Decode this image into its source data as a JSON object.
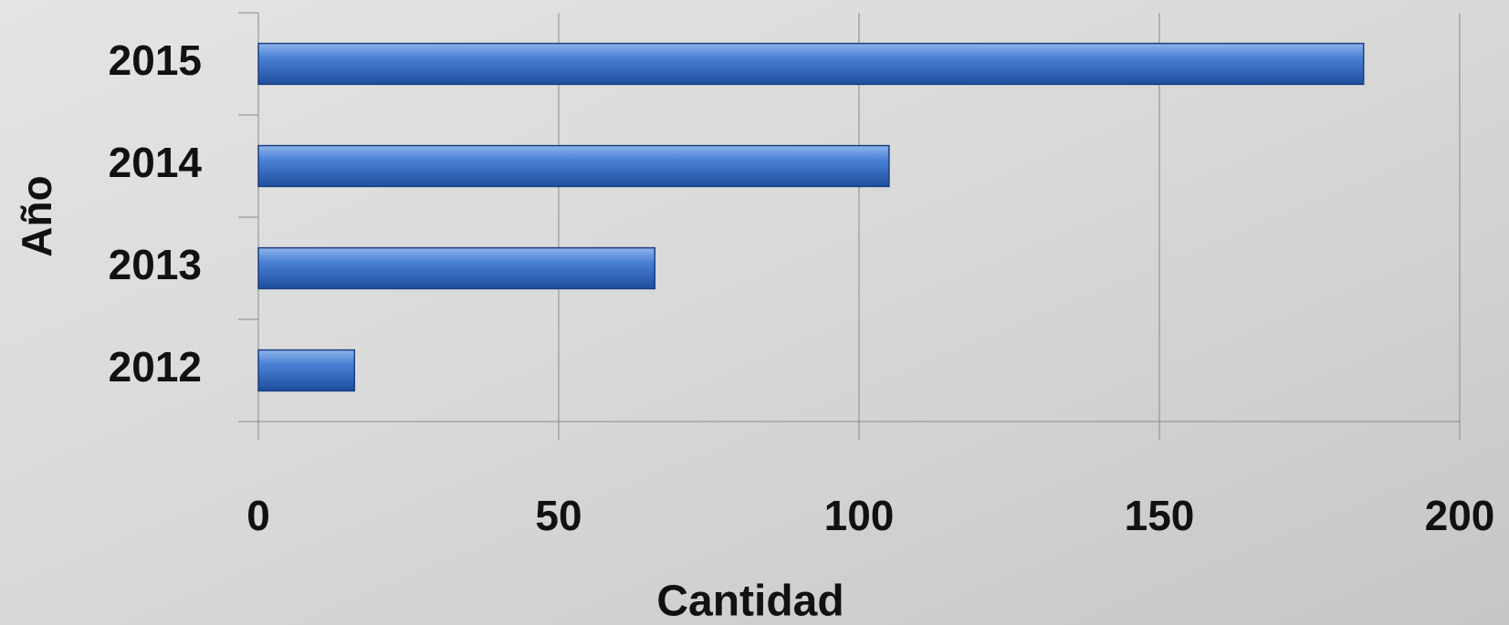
{
  "chart_data": {
    "type": "barh",
    "x_label": "Cantidad",
    "y_label": "Año",
    "categories": [
      "2012",
      "2013",
      "2014",
      "2015"
    ],
    "values": [
      16,
      66,
      105,
      184
    ],
    "color": "#3a6fc4",
    "xlim": [
      0,
      200
    ],
    "xticks": [
      0,
      50,
      100,
      150,
      200
    ],
    "grid": true
  }
}
